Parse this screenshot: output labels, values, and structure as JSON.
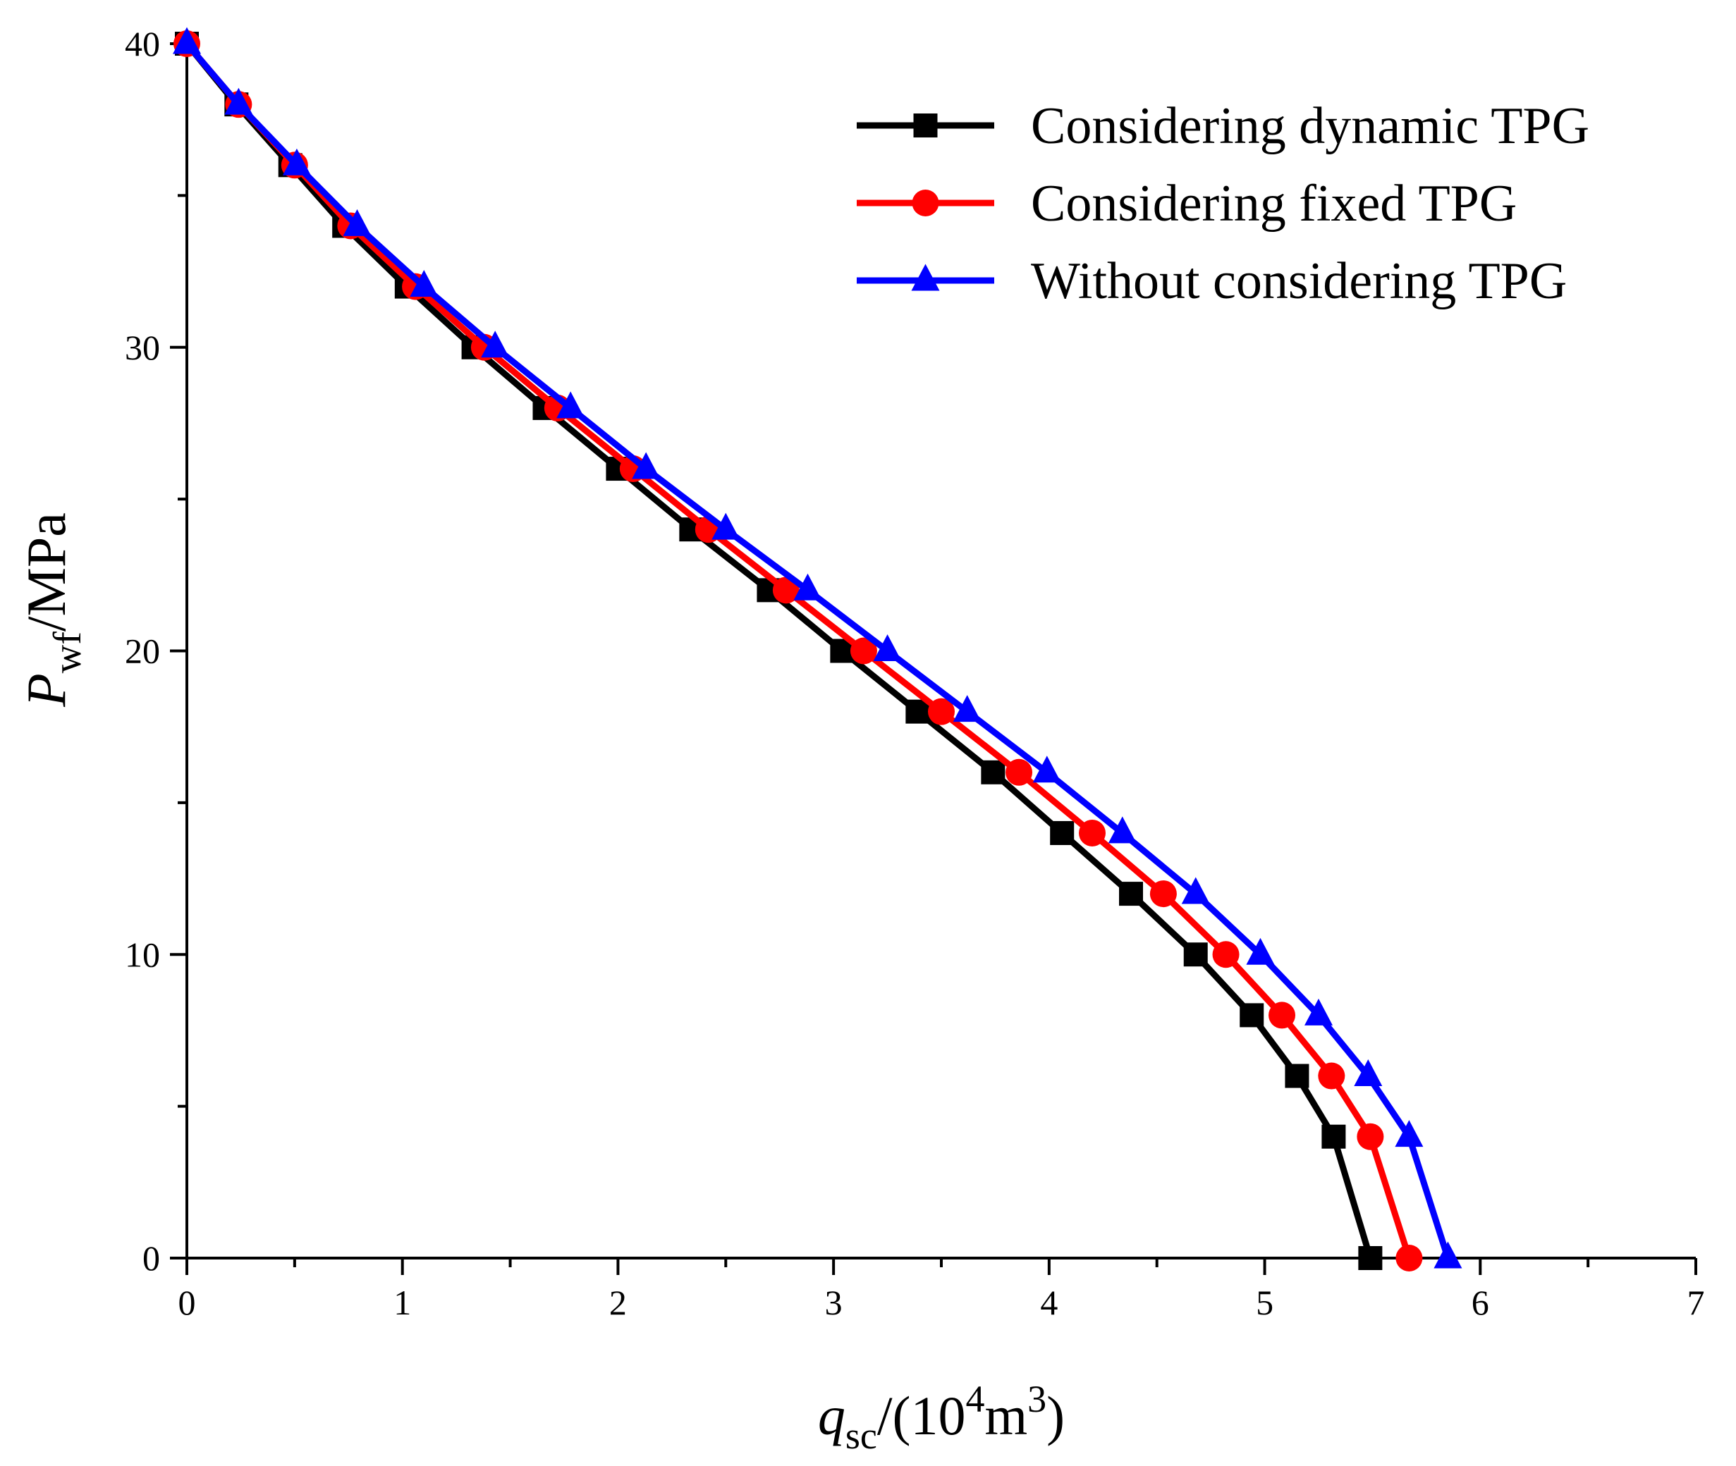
{
  "chart_data": {
    "type": "line",
    "title": "",
    "xlabel": {
      "symbol": "q",
      "subscript": "sc",
      "rest_prefix": "/(10",
      "superscript_a": "4",
      "rest_middle": "m",
      "superscript_b": "3",
      "rest_suffix": ")"
    },
    "ylabel": {
      "symbol": "P",
      "subscript": "wf",
      "rest": "/MPa"
    },
    "xlim": [
      0,
      7
    ],
    "ylim": [
      0,
      40
    ],
    "x_ticks": [
      "0",
      "1",
      "2",
      "3",
      "4",
      "5",
      "6",
      "7"
    ],
    "y_ticks": [
      "0",
      "10",
      "20",
      "30",
      "40"
    ],
    "x_minor_step": 0.5,
    "y_minor_step": 5,
    "grid": false,
    "legend_position": "top-right",
    "series": [
      {
        "name": "Considering dynamic TPG",
        "color": "#000000",
        "marker": "square",
        "points": [
          [
            0.0,
            40
          ],
          [
            0.23,
            38
          ],
          [
            0.48,
            36
          ],
          [
            0.73,
            34
          ],
          [
            1.02,
            32
          ],
          [
            1.33,
            30
          ],
          [
            1.66,
            28
          ],
          [
            2.0,
            26
          ],
          [
            2.34,
            24
          ],
          [
            2.7,
            22
          ],
          [
            3.04,
            20
          ],
          [
            3.39,
            18
          ],
          [
            3.74,
            16
          ],
          [
            4.06,
            14
          ],
          [
            4.38,
            12
          ],
          [
            4.68,
            10
          ],
          [
            4.94,
            8
          ],
          [
            5.15,
            6
          ],
          [
            5.32,
            4
          ],
          [
            5.49,
            0
          ]
        ]
      },
      {
        "name": "Considering fixed TPG",
        "color": "#ff0000",
        "marker": "circle",
        "points": [
          [
            0.0,
            40
          ],
          [
            0.24,
            38
          ],
          [
            0.5,
            36
          ],
          [
            0.76,
            34
          ],
          [
            1.06,
            32
          ],
          [
            1.38,
            30
          ],
          [
            1.72,
            28
          ],
          [
            2.07,
            26
          ],
          [
            2.42,
            24
          ],
          [
            2.78,
            22
          ],
          [
            3.14,
            20
          ],
          [
            3.5,
            18
          ],
          [
            3.86,
            16
          ],
          [
            4.2,
            14
          ],
          [
            4.53,
            12
          ],
          [
            4.82,
            10
          ],
          [
            5.08,
            8
          ],
          [
            5.31,
            6
          ],
          [
            5.49,
            4
          ],
          [
            5.67,
            0
          ]
        ]
      },
      {
        "name": "Without considering TPG",
        "color": "#0000ff",
        "marker": "triangle",
        "points": [
          [
            0.0,
            40
          ],
          [
            0.24,
            38
          ],
          [
            0.51,
            36
          ],
          [
            0.79,
            34
          ],
          [
            1.1,
            32
          ],
          [
            1.43,
            30
          ],
          [
            1.78,
            28
          ],
          [
            2.13,
            26
          ],
          [
            2.5,
            24
          ],
          [
            2.88,
            22
          ],
          [
            3.25,
            20
          ],
          [
            3.62,
            18
          ],
          [
            3.99,
            16
          ],
          [
            4.34,
            14
          ],
          [
            4.68,
            12
          ],
          [
            4.98,
            10
          ],
          [
            5.25,
            8
          ],
          [
            5.48,
            6
          ],
          [
            5.67,
            4
          ],
          [
            5.85,
            0
          ]
        ]
      }
    ]
  }
}
